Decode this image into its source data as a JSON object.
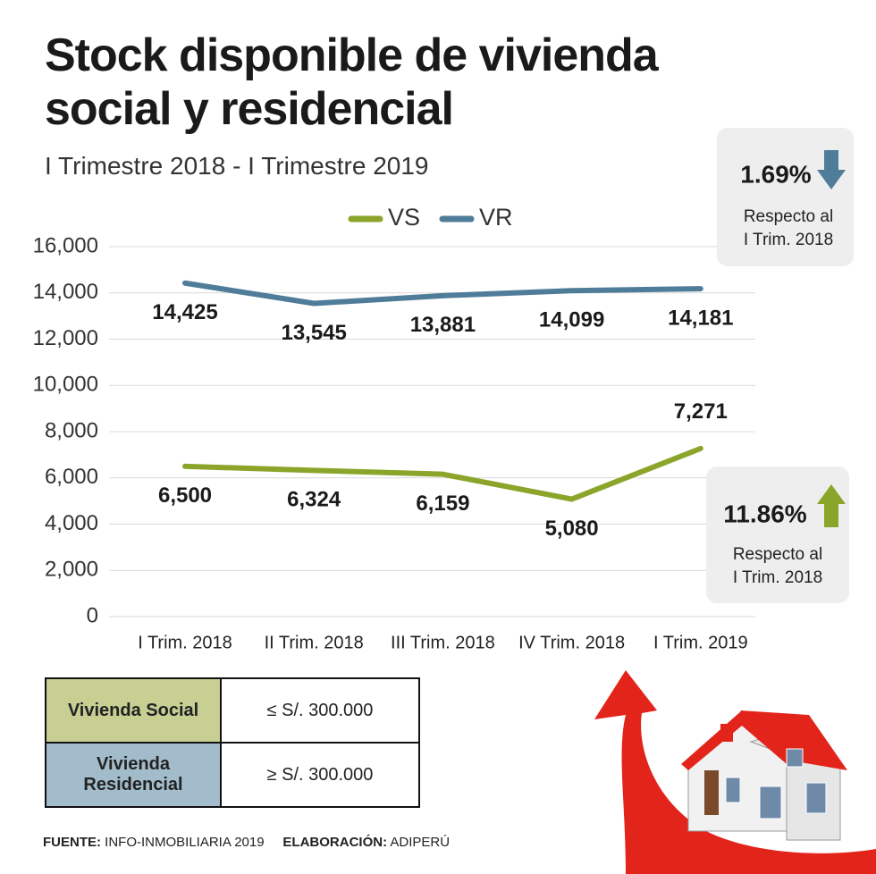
{
  "chart_data": {
    "type": "line",
    "title": "Stock disponible de vivienda social y residencial",
    "subtitle": "I Trimestre 2018 - I Trimestre 2019",
    "categories": [
      "I Trim. 2018",
      "II Trim. 2018",
      "III Trim. 2018",
      "IV Trim. 2018",
      "I Trim. 2019"
    ],
    "series": [
      {
        "name": "VS",
        "color": "#8aa52a",
        "values": [
          6500,
          6324,
          6159,
          5080,
          7271
        ],
        "value_labels": [
          "6,500",
          "6,324",
          "6,159",
          "5,080",
          "7,271"
        ]
      },
      {
        "name": "VR",
        "color": "#4f7d99",
        "values": [
          14425,
          13545,
          13881,
          14099,
          14181
        ],
        "value_labels": [
          "14,425",
          "13,545",
          "13,881",
          "14,099",
          "14,181"
        ]
      }
    ],
    "ylim": [
      0,
      16000
    ],
    "yticks": [
      0,
      {
        "value": 2000,
        "label": "2,000"
      },
      {
        "value": 4000,
        "label": "4,000"
      },
      {
        "value": 6000,
        "label": "6,000"
      },
      {
        "value": 8000,
        "label": "8,000"
      },
      {
        "value": 10000,
        "label": "10,000"
      },
      {
        "value": 12000,
        "label": "12,000"
      },
      {
        "value": 14000,
        "label": "14,000"
      },
      {
        "value": 16000,
        "label": "16,000"
      }
    ],
    "grid": true
  },
  "callouts": [
    {
      "value": "1.69%",
      "lines": [
        "Respecto al",
        "I Trim. 2018"
      ]
    },
    {
      "value": "11.86%",
      "lines": [
        "Respecto al",
        "I Trim. 2018"
      ]
    }
  ],
  "table": {
    "rows": [
      [
        "Vivienda Social",
        "≤ S/. 300.000"
      ],
      [
        "Vivienda Residencial",
        "≥ S/. 300.000"
      ]
    ]
  },
  "footer": {
    "source_label": "FUENTE:",
    "source": "INFO-INMOBILIARIA 2019",
    "credit_label": "ELABORACIÓN:",
    "credit": "ADIPERÚ"
  }
}
